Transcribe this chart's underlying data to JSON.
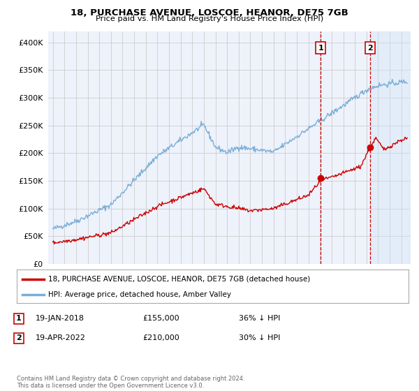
{
  "title": "18, PURCHASE AVENUE, LOSCOE, HEANOR, DE75 7GB",
  "subtitle": "Price paid vs. HM Land Registry's House Price Index (HPI)",
  "ylim": [
    0,
    420000
  ],
  "yticks": [
    0,
    50000,
    100000,
    150000,
    200000,
    250000,
    300000,
    350000,
    400000
  ],
  "ytick_labels": [
    "£0",
    "£50K",
    "£100K",
    "£150K",
    "£200K",
    "£250K",
    "£300K",
    "£350K",
    "£400K"
  ],
  "background_color": "#ffffff",
  "plot_bg_color": "#eef2fb",
  "grid_color": "#cccccc",
  "legend_label_red": "18, PURCHASE AVENUE, LOSCOE, HEANOR, DE75 7GB (detached house)",
  "legend_label_blue": "HPI: Average price, detached house, Amber Valley",
  "annotation1_label": "1",
  "annotation1_date": "19-JAN-2018",
  "annotation1_price": "£155,000",
  "annotation1_pct": "36% ↓ HPI",
  "annotation2_label": "2",
  "annotation2_date": "19-APR-2022",
  "annotation2_price": "£210,000",
  "annotation2_pct": "30% ↓ HPI",
  "footer": "Contains HM Land Registry data © Crown copyright and database right 2024.\nThis data is licensed under the Open Government Licence v3.0.",
  "red_color": "#cc0000",
  "blue_color": "#7aaed6",
  "shade_color": "#d0e4f7",
  "marker1_x": 2018.05,
  "marker1_y": 155000,
  "marker2_x": 2022.3,
  "marker2_y": 210000,
  "xlim_left": 1994.6,
  "xlim_right": 2025.8
}
